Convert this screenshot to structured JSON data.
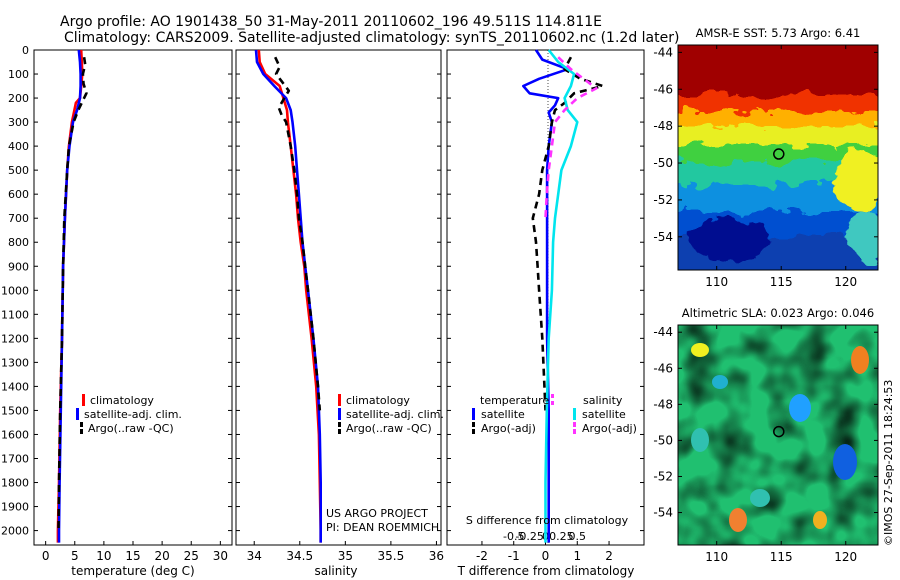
{
  "header": {
    "line1": "Argo profile: AO 1901438_50 31-May-2011 20110602_196 49.511S 114.811E",
    "line2": "Climatology: CARS2009. Satellite-adjusted climatology: synTS_20110602.nc (1.2d later)"
  },
  "credits": {
    "project": "US ARGO PROJECT",
    "pi": "PI: DEAN ROEMMICH",
    "stamp": "©IMOS 27-Sep-2011 18:24:53"
  },
  "colors": {
    "climatology": "#ff0000",
    "satellite_adj": "#0000ff",
    "argo": "#000000",
    "salinity_satellite": "#00e5ee",
    "salinity_argo": "#ff33ff"
  },
  "chart_data": [
    {
      "type": "line",
      "xlabel": "temperature (deg C)",
      "ylabel": "",
      "xlim": [
        -2,
        32
      ],
      "ylim": [
        2060,
        0
      ],
      "xticks": [
        "0",
        "5",
        "10",
        "15",
        "20",
        "25",
        "30"
      ],
      "yticks": [
        "0",
        "100",
        "200",
        "300",
        "400",
        "500",
        "600",
        "700",
        "800",
        "900",
        "1000",
        "1100",
        "1200",
        "1300",
        "1400",
        "1500",
        "1600",
        "1700",
        "1800",
        "1900",
        "2000"
      ],
      "legend": [
        "climatology",
        "satellite-adj. clim.",
        "Argo(..raw -QC)"
      ],
      "series": [
        {
          "name": "climatology",
          "style": "solid",
          "y": [
            0,
            50,
            100,
            150,
            200,
            220,
            300,
            400,
            500,
            700,
            900,
            1200,
            1500,
            1800,
            2000,
            2050
          ],
          "values": [
            6.1,
            6.2,
            6.3,
            6.1,
            5.9,
            5.2,
            4.5,
            4.0,
            3.7,
            3.3,
            3.0,
            2.8,
            2.5,
            2.3,
            2.1,
            2.1
          ]
        },
        {
          "name": "satellite-adj. clim.",
          "style": "solid",
          "y": [
            0,
            50,
            100,
            150,
            200,
            250,
            300,
            400,
            500,
            700,
            900,
            1200,
            1500,
            1800,
            2000,
            2050
          ],
          "values": [
            5.7,
            5.9,
            6.0,
            6.0,
            5.9,
            5.4,
            4.7,
            4.1,
            3.7,
            3.3,
            3.0,
            2.8,
            2.6,
            2.4,
            2.3,
            2.3
          ]
        },
        {
          "name": "Argo(..raw -QC)",
          "style": "dashed",
          "y": [
            30,
            60,
            100,
            140,
            180,
            210,
            250,
            300,
            400,
            500,
            700,
            900,
            1200,
            1500,
            1800,
            2000
          ],
          "values": [
            6.6,
            6.8,
            6.4,
            6.5,
            7.0,
            6.4,
            5.6,
            4.8,
            4.0,
            3.7,
            3.2,
            3.0,
            2.8,
            2.5,
            2.3,
            2.2
          ]
        }
      ]
    },
    {
      "type": "line",
      "xlabel": "salinity",
      "ylabel": "",
      "xlim": [
        33.8,
        36.05
      ],
      "ylim": [
        2060,
        0
      ],
      "xticks": [
        "34",
        "34.5",
        "35",
        "35.5",
        "36"
      ],
      "legend": [
        "climatology",
        "satellite-adj. clim.",
        "Argo(..raw -QC)"
      ],
      "series": [
        {
          "name": "climatology",
          "style": "solid",
          "y": [
            0,
            50,
            100,
            150,
            200,
            250,
            300,
            400,
            500,
            600,
            700,
            800,
            900,
            1000,
            1200,
            1400,
            1600,
            1800,
            2000,
            2050
          ],
          "values": [
            34.05,
            34.06,
            34.12,
            34.28,
            34.32,
            34.36,
            34.37,
            34.4,
            34.43,
            34.46,
            34.48,
            34.51,
            34.55,
            34.57,
            34.63,
            34.68,
            34.71,
            34.72,
            34.73,
            34.73
          ]
        },
        {
          "name": "satellite-adj. clim.",
          "style": "solid",
          "y": [
            0,
            50,
            100,
            150,
            200,
            250,
            300,
            400,
            500,
            600,
            700,
            800,
            900,
            1000,
            1200,
            1400,
            1600,
            1800,
            2000,
            2050
          ],
          "values": [
            34.02,
            34.03,
            34.1,
            34.22,
            34.35,
            34.4,
            34.42,
            34.45,
            34.47,
            34.49,
            34.51,
            34.53,
            34.56,
            34.59,
            34.65,
            34.7,
            34.72,
            34.73,
            34.73,
            34.73
          ]
        },
        {
          "name": "Argo(..raw -QC)",
          "style": "dashed",
          "y": [
            30,
            70,
            100,
            130,
            170,
            200,
            240,
            270,
            300,
            400,
            500,
            600,
            700,
            800,
            900,
            1000,
            1200,
            1400,
            1500
          ],
          "values": [
            34.23,
            34.28,
            34.24,
            34.3,
            34.38,
            34.33,
            34.27,
            34.3,
            34.35,
            34.4,
            34.44,
            34.47,
            34.49,
            34.53,
            34.56,
            34.59,
            34.65,
            34.7,
            34.72
          ]
        }
      ]
    },
    {
      "type": "line",
      "xlabel": "T difference from climatology",
      "x2label": "S difference from climatology",
      "ylabel": "",
      "xlim": [
        -3.1,
        3.1
      ],
      "ylim": [
        2060,
        0
      ],
      "xticks": [
        "-2",
        "-1",
        "0",
        "1",
        "2"
      ],
      "x2ticks": [
        "-0.5",
        "-0.25",
        "0",
        "0.25",
        "0.5"
      ],
      "legend_groups": [
        {
          "title": "temperature",
          "items": [
            "satellite",
            "Argo(-adj)"
          ]
        },
        {
          "title": "salinity",
          "items": [
            "satellite",
            "Argo(-adj)"
          ]
        }
      ],
      "series": [
        {
          "name": "satellite",
          "group": "temperature",
          "style": "solid",
          "y": [
            0,
            40,
            80,
            120,
            150,
            180,
            200,
            230,
            260,
            300,
            400,
            500,
            700,
            900,
            1200,
            1500,
            1800,
            2000,
            2050
          ],
          "values": [
            -0.3,
            -0.1,
            0.7,
            -0.2,
            -0.7,
            -0.5,
            0.4,
            0.3,
            0.1,
            0.2,
            0.1,
            0.05,
            0.05,
            0.05,
            0.05,
            0.1,
            0.1,
            0.1,
            0.1
          ]
        },
        {
          "name": "Argo(-adj)",
          "group": "temperature",
          "style": "dashed",
          "y": [
            30,
            80,
            120,
            150,
            180,
            220,
            250,
            300,
            400,
            500,
            600,
            700,
            800,
            900,
            1000,
            1200,
            1500
          ],
          "values": [
            0.8,
            0.6,
            1.1,
            1.8,
            0.9,
            0.6,
            0.3,
            0.2,
            0.1,
            -0.1,
            -0.2,
            -0.4,
            -0.3,
            -0.25,
            -0.2,
            -0.1,
            0.0
          ]
        },
        {
          "name": "satellite",
          "group": "salinity",
          "style": "solid",
          "y": [
            0,
            50,
            100,
            150,
            200,
            250,
            300,
            400,
            500,
            600,
            700,
            800,
            1000,
            1200,
            1500,
            1800,
            2000,
            2050
          ],
          "values": [
            0.05,
            0.2,
            0.45,
            0.4,
            0.3,
            0.35,
            0.5,
            0.4,
            0.25,
            0.2,
            0.15,
            0.12,
            0.1,
            0.05,
            0.02,
            0.0,
            0.0,
            0.0
          ]
        },
        {
          "name": "Argo(-adj)",
          "group": "salinity",
          "style": "dashed",
          "y": [
            30,
            80,
            120,
            160,
            200,
            250,
            300,
            400,
            500,
            600,
            700
          ],
          "values": [
            0.2,
            0.4,
            0.6,
            0.8,
            0.5,
            0.3,
            0.15,
            0.1,
            0.05,
            0.02,
            0.0
          ]
        }
      ]
    },
    {
      "type": "heatmap",
      "title": "AMSR-E SST: 5.73 Argo: 6.41",
      "xlim": [
        107,
        122.5
      ],
      "ylim": [
        -55.8,
        -43.6
      ],
      "xticks": [
        "110",
        "115",
        "120"
      ],
      "yticks": [
        "-44",
        "-46",
        "-48",
        "-50",
        "-52",
        "-54"
      ],
      "marker": {
        "lon": 114.811,
        "lat": -49.511
      }
    },
    {
      "type": "heatmap",
      "title": "Altimetric SLA: 0.023 Argo: 0.046",
      "xlim": [
        107,
        122.5
      ],
      "ylim": [
        -55.8,
        -43.6
      ],
      "xticks": [
        "110",
        "115",
        "120"
      ],
      "yticks": [
        "-44",
        "-46",
        "-48",
        "-50",
        "-52",
        "-54"
      ],
      "marker": {
        "lon": 114.811,
        "lat": -49.511
      }
    }
  ]
}
